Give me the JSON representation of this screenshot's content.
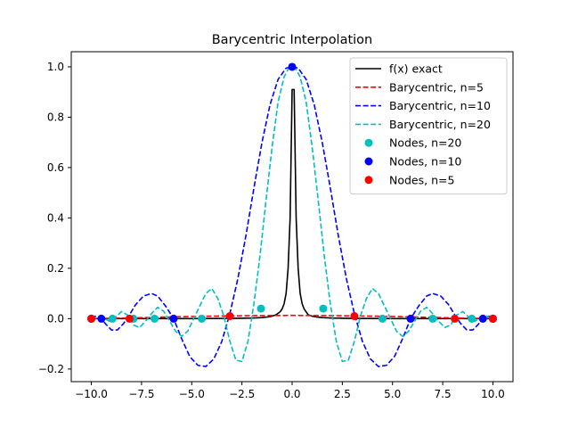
{
  "chart_data": {
    "type": "line",
    "title": "Barycentric Interpolation",
    "xlabel": "",
    "ylabel": "",
    "xlim": [
      -11,
      11
    ],
    "ylim": [
      -0.25,
      1.06
    ],
    "grid": false,
    "legend_position": "upper-right",
    "x_ticks": [
      -10.0,
      -7.5,
      -5.0,
      -2.5,
      0.0,
      2.5,
      5.0,
      7.5,
      10.0
    ],
    "x_tick_labels": [
      "−10.0",
      "−7.5",
      "−5.0",
      "−2.5",
      "0.0",
      "2.5",
      "5.0",
      "7.5",
      "10.0"
    ],
    "y_ticks": [
      -0.2,
      0.0,
      0.2,
      0.4,
      0.6,
      0.8,
      1.0
    ],
    "y_tick_labels": [
      "−0.2",
      "0.0",
      "0.2",
      "0.4",
      "0.6",
      "0.8",
      "1.0"
    ],
    "series": [
      {
        "name": "f(x) exact",
        "kind": "line",
        "color": "#000000",
        "dash": "solid",
        "x": [
          -10,
          -8,
          -6,
          -5,
          -4,
          -3,
          -2.5,
          -2,
          -1.5,
          -1.2,
          -1,
          -0.8,
          -0.6,
          -0.5,
          -0.4,
          -0.3,
          -0.2,
          -0.1,
          0,
          0.1,
          0.2,
          0.3,
          0.4,
          0.5,
          0.6,
          0.8,
          1,
          1.2,
          1.5,
          2,
          2.5,
          3,
          4,
          5,
          6,
          8,
          10
        ],
        "y": [
          0.0001,
          0.0002,
          0.0003,
          0.0004,
          0.0006,
          0.0011,
          0.0016,
          0.0025,
          0.0044,
          0.0069,
          0.0099,
          0.0154,
          0.027,
          0.0385,
          0.0588,
          0.1,
          0.2,
          0.4,
          0.91,
          0.91,
          0.4,
          0.2,
          0.1,
          0.0588,
          0.0385,
          0.0154,
          0.0099,
          0.0069,
          0.0044,
          0.0025,
          0.0016,
          0.0011,
          0.0006,
          0.0004,
          0.0003,
          0.0002,
          0.0001
        ]
      },
      {
        "name": "Barycentric, n=5",
        "kind": "line",
        "color": "#ff0000",
        "dash": "dashed",
        "x": [
          -10,
          -8,
          -6,
          -4,
          -2,
          0,
          2,
          4,
          6,
          8,
          10
        ],
        "y": [
          0.0,
          0.003,
          0.007,
          0.01,
          0.012,
          0.013,
          0.012,
          0.01,
          0.007,
          0.003,
          0.0
        ]
      },
      {
        "name": "Barycentric, n=10",
        "kind": "line",
        "color": "#0000ff",
        "dash": "dashed",
        "x": [
          -10,
          -9.8,
          -9.5,
          -9.3,
          -9.0,
          -8.7,
          -8.4,
          -8.1,
          -7.8,
          -7.4,
          -7.0,
          -6.7,
          -6.3,
          -5.9,
          -5.5,
          -5.1,
          -4.7,
          -4.3,
          -3.9,
          -3.5,
          -3.1,
          -2.7,
          -2.3,
          -1.9,
          -1.5,
          -1.1,
          -0.7,
          -0.3,
          0.0,
          0.3,
          0.7,
          1.1,
          1.5,
          1.9,
          2.3,
          2.7,
          3.1,
          3.5,
          3.9,
          4.3,
          4.7,
          5.1,
          5.5,
          5.9,
          6.3,
          6.7,
          7.0,
          7.4,
          7.8,
          8.1,
          8.4,
          8.7,
          9.0,
          9.3,
          9.5,
          9.8,
          10
        ],
        "y": [
          0.0,
          0.01,
          0.0,
          -0.02,
          -0.045,
          -0.045,
          -0.02,
          0.015,
          0.055,
          0.09,
          0.1,
          0.09,
          0.05,
          0.0,
          -0.08,
          -0.15,
          -0.185,
          -0.19,
          -0.16,
          -0.09,
          0.02,
          0.16,
          0.33,
          0.52,
          0.7,
          0.85,
          0.95,
          0.995,
          1.0,
          0.995,
          0.95,
          0.85,
          0.7,
          0.52,
          0.33,
          0.16,
          0.02,
          -0.09,
          -0.16,
          -0.19,
          -0.185,
          -0.15,
          -0.08,
          0.0,
          0.05,
          0.09,
          0.1,
          0.09,
          0.055,
          0.015,
          -0.02,
          -0.045,
          -0.045,
          -0.02,
          0.0,
          0.01,
          0.0
        ]
      },
      {
        "name": "Barycentric, n=20",
        "kind": "line",
        "color": "#00bfbf",
        "dash": "dashed",
        "x": [
          -10,
          -9.7,
          -9.4,
          -9.1,
          -8.8,
          -8.5,
          -8.2,
          -7.9,
          -7.6,
          -7.3,
          -7.0,
          -6.7,
          -6.4,
          -6.1,
          -5.8,
          -5.5,
          -5.2,
          -4.9,
          -4.6,
          -4.3,
          -4.0,
          -3.7,
          -3.4,
          -3.1,
          -2.8,
          -2.5,
          -2.2,
          -1.9,
          -1.6,
          -1.3,
          -1.0,
          -0.7,
          -0.4,
          -0.2,
          0.0,
          0.2,
          0.4,
          0.7,
          1.0,
          1.3,
          1.6,
          1.9,
          2.2,
          2.5,
          2.8,
          3.1,
          3.4,
          3.7,
          4.0,
          4.3,
          4.6,
          4.9,
          5.2,
          5.5,
          5.8,
          6.1,
          6.4,
          6.7,
          7.0,
          7.3,
          7.6,
          7.9,
          8.2,
          8.5,
          8.8,
          9.1,
          9.4,
          9.7,
          10
        ],
        "y": [
          0.0,
          0.01,
          0.002,
          -0.01,
          0.005,
          0.028,
          0.015,
          -0.025,
          -0.035,
          -0.01,
          0.02,
          0.045,
          0.03,
          -0.01,
          -0.05,
          -0.07,
          -0.05,
          0.0,
          0.05,
          0.1,
          0.12,
          0.08,
          0.01,
          -0.09,
          -0.165,
          -0.17,
          -0.09,
          0.06,
          0.25,
          0.47,
          0.68,
          0.86,
          0.96,
          0.99,
          1.0,
          0.99,
          0.96,
          0.86,
          0.68,
          0.47,
          0.25,
          0.06,
          -0.09,
          -0.17,
          -0.165,
          -0.09,
          0.01,
          0.08,
          0.12,
          0.1,
          0.05,
          0.0,
          -0.05,
          -0.07,
          -0.05,
          -0.01,
          0.03,
          0.045,
          0.02,
          -0.01,
          -0.035,
          -0.025,
          0.015,
          0.028,
          0.005,
          -0.01,
          0.002,
          0.01,
          0.0
        ]
      },
      {
        "name": "Nodes, n=20",
        "kind": "scatter",
        "color": "#00bfbf",
        "x": [
          -10.0,
          -8.95,
          -7.9,
          -6.85,
          -4.5,
          -1.55,
          1.55,
          4.5,
          7.0,
          8.95,
          10.0
        ],
        "y": [
          0.0,
          0.0,
          0.0,
          0.0,
          0.0,
          0.04,
          0.04,
          0.0,
          0.0,
          0.0,
          0.0
        ]
      },
      {
        "name": "Nodes, n=10",
        "kind": "scatter",
        "color": "#0000ff",
        "x": [
          -10.0,
          -9.5,
          -5.9,
          0.0,
          5.9,
          9.5,
          10.0
        ],
        "y": [
          0.0,
          0.0,
          0.0,
          1.0,
          0.0,
          0.0,
          0.0
        ]
      },
      {
        "name": "Nodes, n=5",
        "kind": "scatter",
        "color": "#ff0000",
        "x": [
          -10.0,
          -8.1,
          -3.1,
          3.1,
          8.1,
          10.0
        ],
        "y": [
          0.0,
          0.0,
          0.01,
          0.01,
          0.0,
          0.0
        ]
      }
    ],
    "legend": [
      {
        "label": "f(x) exact",
        "color": "#000000",
        "marker": "solid-line"
      },
      {
        "label": "Barycentric, n=5",
        "color": "#ff0000",
        "marker": "dashed-line"
      },
      {
        "label": "Barycentric, n=10",
        "color": "#0000ff",
        "marker": "dashed-line"
      },
      {
        "label": "Barycentric, n=20",
        "color": "#00bfbf",
        "marker": "dashed-line"
      },
      {
        "label": "Nodes, n=20",
        "color": "#00bfbf",
        "marker": "dot"
      },
      {
        "label": "Nodes, n=10",
        "color": "#0000ff",
        "marker": "dot"
      },
      {
        "label": "Nodes, n=5",
        "color": "#ff0000",
        "marker": "dot"
      }
    ]
  }
}
